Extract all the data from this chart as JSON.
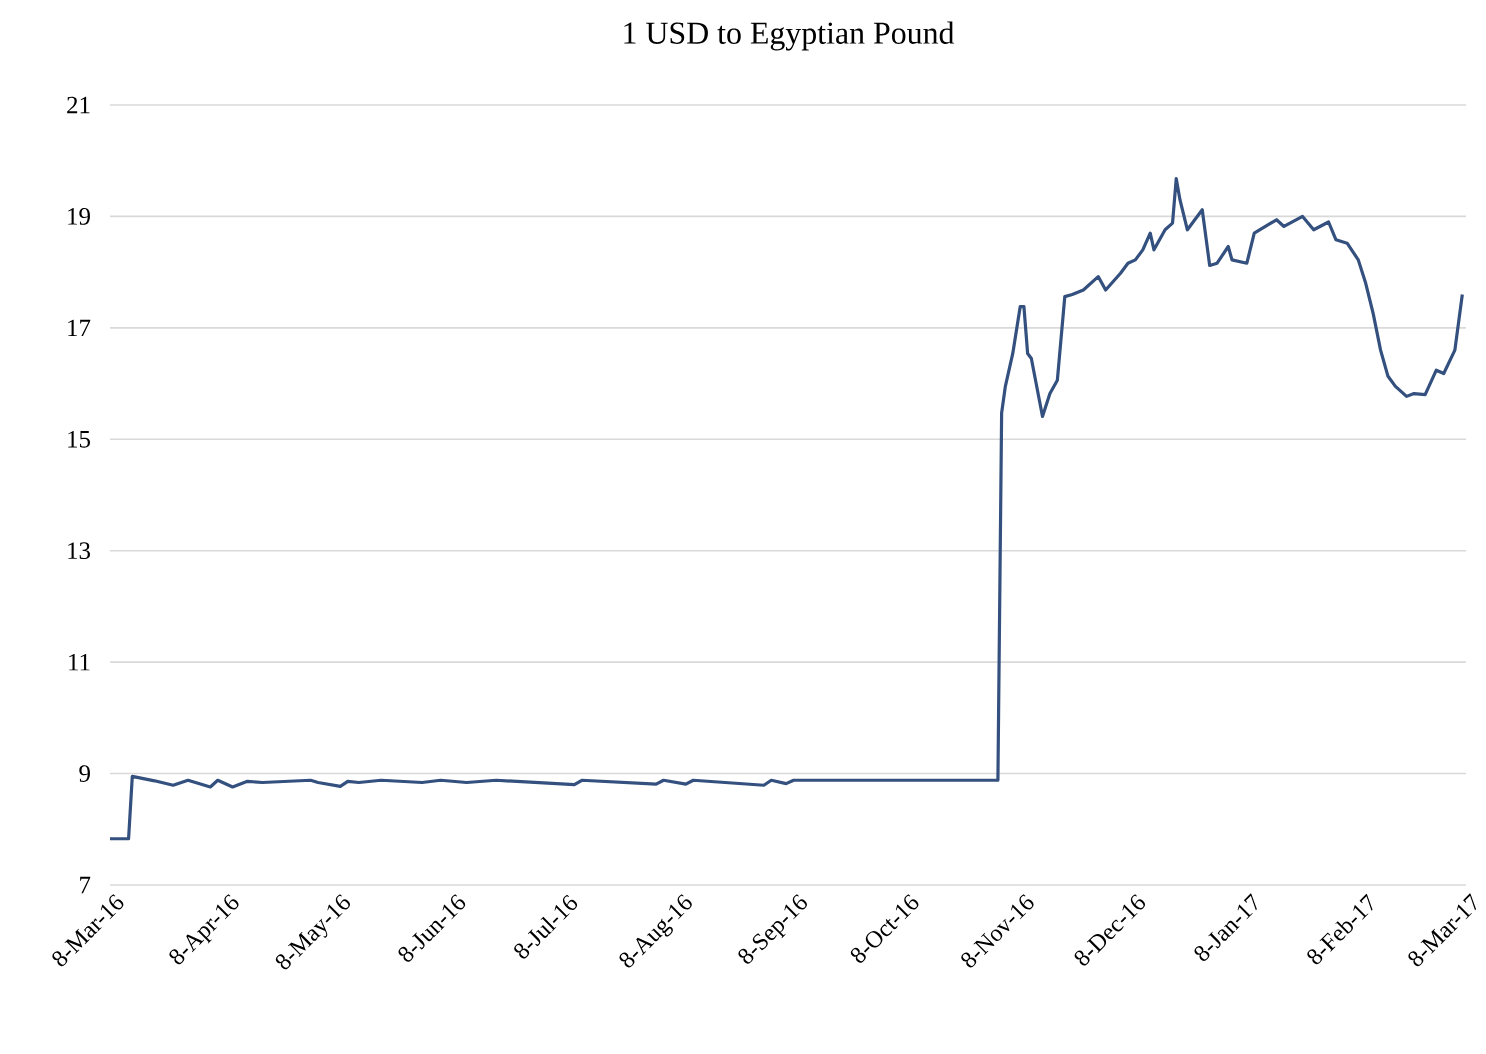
{
  "chart_data": {
    "type": "line",
    "title": "1 USD to Egyptian Pound",
    "x": [
      "2016-03-08",
      "2016-03-13",
      "2016-03-14",
      "2016-03-20",
      "2016-03-25",
      "2016-03-29",
      "2016-04-04",
      "2016-04-06",
      "2016-04-10",
      "2016-04-14",
      "2016-04-18",
      "2016-05-01",
      "2016-05-03",
      "2016-05-09",
      "2016-05-11",
      "2016-05-14",
      "2016-05-20",
      "2016-05-31",
      "2016-06-05",
      "2016-06-12",
      "2016-06-20",
      "2016-07-11",
      "2016-07-13",
      "2016-08-02",
      "2016-08-04",
      "2016-08-10",
      "2016-08-12",
      "2016-08-31",
      "2016-09-02",
      "2016-09-06",
      "2016-09-08",
      "2016-11-02",
      "2016-11-03",
      "2016-11-04",
      "2016-11-06",
      "2016-11-08",
      "2016-11-09",
      "2016-11-10",
      "2016-11-11",
      "2016-11-14",
      "2016-11-16",
      "2016-11-18",
      "2016-11-20",
      "2016-11-22",
      "2016-11-25",
      "2016-11-29",
      "2016-12-01",
      "2016-12-05",
      "2016-12-07",
      "2016-12-09",
      "2016-12-11",
      "2016-12-13",
      "2016-12-14",
      "2016-12-17",
      "2016-12-19",
      "2016-12-20",
      "2016-12-21",
      "2016-12-23",
      "2016-12-27",
      "2016-12-29",
      "2016-12-31",
      "2017-01-03",
      "2017-01-04",
      "2017-01-08",
      "2017-01-10",
      "2017-01-13",
      "2017-01-16",
      "2017-01-18",
      "2017-01-23",
      "2017-01-26",
      "2017-01-30",
      "2017-02-01",
      "2017-02-04",
      "2017-02-07",
      "2017-02-09",
      "2017-02-11",
      "2017-02-13",
      "2017-02-15",
      "2017-02-17",
      "2017-02-20",
      "2017-02-22",
      "2017-02-25",
      "2017-02-28",
      "2017-03-02",
      "2017-03-05",
      "2017-03-07"
    ],
    "values": [
      7.83,
      7.83,
      8.95,
      8.87,
      8.79,
      8.88,
      8.76,
      8.88,
      8.76,
      8.86,
      8.84,
      8.88,
      8.84,
      8.77,
      8.86,
      8.84,
      8.88,
      8.84,
      8.88,
      8.84,
      8.88,
      8.8,
      8.88,
      8.81,
      8.88,
      8.81,
      8.88,
      8.79,
      8.88,
      8.82,
      8.88,
      8.88,
      15.47,
      15.95,
      16.54,
      17.38,
      17.38,
      16.54,
      16.45,
      15.41,
      15.82,
      16.06,
      17.56,
      17.6,
      17.68,
      17.92,
      17.68,
      17.98,
      18.16,
      18.22,
      18.4,
      18.7,
      18.4,
      18.76,
      18.88,
      19.68,
      19.3,
      18.76,
      19.12,
      18.12,
      18.16,
      18.46,
      18.22,
      18.16,
      18.7,
      18.82,
      18.94,
      18.82,
      19.0,
      18.76,
      18.9,
      18.58,
      18.52,
      18.22,
      17.8,
      17.26,
      16.6,
      16.13,
      15.95,
      15.77,
      15.82,
      15.8,
      16.24,
      16.18,
      16.6,
      17.6
    ],
    "color": "#34507f",
    "xlim": [
      "2016-03-08",
      "2017-03-08"
    ],
    "xticks": [
      {
        "value": "2016-03-08",
        "label": "8-Mar-16"
      },
      {
        "value": "2016-04-08",
        "label": "8-Apr-16"
      },
      {
        "value": "2016-05-08",
        "label": "8-May-16"
      },
      {
        "value": "2016-06-08",
        "label": "8-Jun-16"
      },
      {
        "value": "2016-07-08",
        "label": "8-Jul-16"
      },
      {
        "value": "2016-08-08",
        "label": "8-Aug-16"
      },
      {
        "value": "2016-09-08",
        "label": "8-Sep-16"
      },
      {
        "value": "2016-10-08",
        "label": "8-Oct-16"
      },
      {
        "value": "2016-11-08",
        "label": "8-Nov-16"
      },
      {
        "value": "2016-12-08",
        "label": "8-Dec-16"
      },
      {
        "value": "2017-01-08",
        "label": "8-Jan-17"
      },
      {
        "value": "2017-02-08",
        "label": "8-Feb-17"
      },
      {
        "value": "2017-03-08",
        "label": "8-Mar-17"
      }
    ],
    "ylim": [
      7,
      21
    ],
    "yticks": [
      7,
      9,
      11,
      13,
      15,
      17,
      19,
      21
    ],
    "grid": "y"
  }
}
